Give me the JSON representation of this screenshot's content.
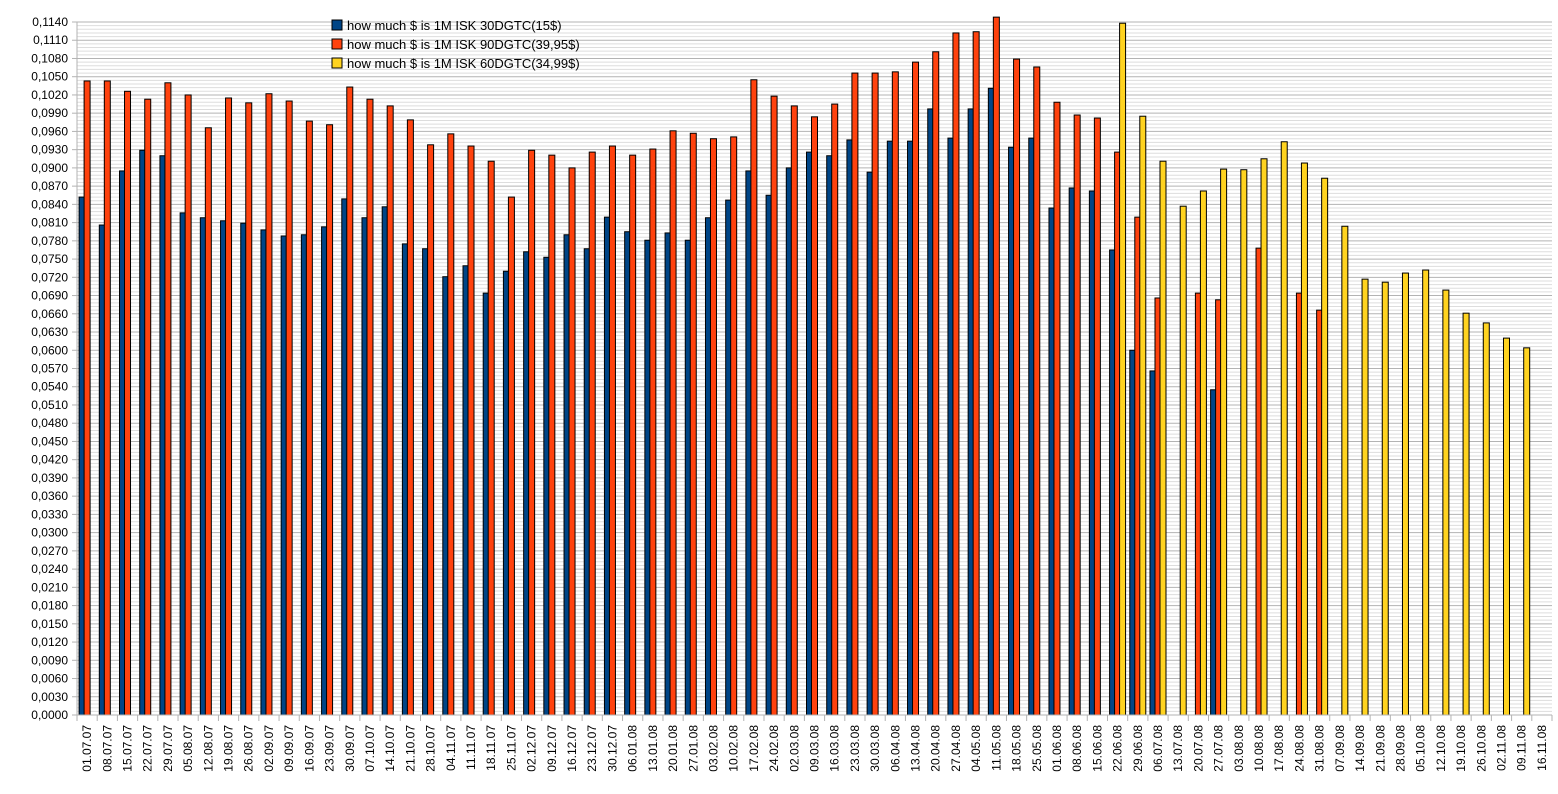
{
  "chart_data": {
    "type": "bar",
    "title": "",
    "xlabel": "",
    "ylabel": "",
    "ylim": [
      0,
      0.114
    ],
    "y_major_step": 0.003,
    "y_minor_step": 0.0006,
    "y_tick_decimals": 4,
    "decimal_separator": ",",
    "grid": true,
    "legend_position": "top-left-inside",
    "categories": [
      "01.07.07",
      "08.07.07",
      "15.07.07",
      "22.07.07",
      "29.07.07",
      "05.08.07",
      "12.08.07",
      "19.08.07",
      "26.08.07",
      "02.09.07",
      "09.09.07",
      "16.09.07",
      "23.09.07",
      "30.09.07",
      "07.10.07",
      "14.10.07",
      "21.10.07",
      "28.10.07",
      "04.11.07",
      "11.11.07",
      "18.11.07",
      "25.11.07",
      "02.12.07",
      "09.12.07",
      "16.12.07",
      "23.12.07",
      "30.12.07",
      "06.01.08",
      "13.01.08",
      "20.01.08",
      "27.01.08",
      "03.02.08",
      "10.02.08",
      "17.02.08",
      "24.02.08",
      "02.03.08",
      "09.03.08",
      "16.03.08",
      "23.03.08",
      "30.03.08",
      "06.04.08",
      "13.04.08",
      "20.04.08",
      "27.04.08",
      "04.05.08",
      "11.05.08",
      "18.05.08",
      "25.05.08",
      "01.06.08",
      "08.06.08",
      "15.06.08",
      "22.06.08",
      "29.06.08",
      "06.07.08",
      "13.07.08",
      "20.07.08",
      "27.07.08",
      "03.08.08",
      "10.08.08",
      "17.08.08",
      "24.08.08",
      "31.08.08",
      "07.09.08",
      "14.09.08",
      "21.09.08",
      "28.09.08",
      "05.10.08",
      "12.10.08",
      "19.10.08",
      "26.10.08",
      "02.11.08",
      "09.11.08",
      "16.11.08"
    ],
    "series": [
      {
        "name": "how much $ is 1M ISK 30DGTC(15$)",
        "color": "#004586",
        "values": [
          0.0852,
          0.0806,
          0.0895,
          0.0929,
          0.092,
          0.0826,
          0.0818,
          0.0813,
          0.0809,
          0.0798,
          0.0788,
          0.079,
          0.0803,
          0.0849,
          0.0818,
          0.0836,
          0.0775,
          0.0767,
          0.0721,
          0.0739,
          0.0694,
          0.073,
          0.0762,
          0.0753,
          0.079,
          0.0767,
          0.0819,
          0.0795,
          0.0781,
          0.0793,
          0.0781,
          0.0818,
          0.0847,
          0.0895,
          0.0855,
          0.09,
          0.0926,
          0.092,
          0.0946,
          0.0893,
          0.0944,
          0.0944,
          0.0997,
          0.0949,
          0.0997,
          0.1031,
          0.0934,
          0.0949,
          0.0834,
          0.0867,
          0.0862,
          0.0765,
          0.06,
          0.0566,
          null,
          null,
          0.0535,
          null,
          null,
          null,
          null,
          null,
          null,
          null,
          null,
          null,
          null,
          null,
          null,
          null,
          null,
          null,
          null
        ]
      },
      {
        "name": "how much $ is 1M ISK 90DGTC(39,95$)",
        "color": "#ff420e",
        "values": [
          0.1043,
          0.1043,
          0.1026,
          0.1013,
          0.104,
          0.102,
          0.0966,
          0.1015,
          0.1007,
          0.1022,
          0.101,
          0.0977,
          0.0971,
          0.1033,
          0.1013,
          0.1002,
          0.0979,
          0.0938,
          0.0956,
          0.0936,
          0.0911,
          0.0852,
          0.0929,
          0.0921,
          0.09,
          0.0926,
          0.0936,
          0.0921,
          0.0931,
          0.0961,
          0.0957,
          0.0948,
          0.0951,
          0.1045,
          0.1018,
          0.1002,
          0.0984,
          0.1005,
          0.1056,
          0.1056,
          0.1058,
          0.1074,
          0.1091,
          0.1122,
          0.1124,
          0.1148,
          0.1079,
          0.1066,
          0.1008,
          0.0987,
          0.0982,
          0.0926,
          0.0819,
          0.0686,
          null,
          0.0694,
          0.0683,
          null,
          0.0768,
          null,
          0.0694,
          0.0666,
          null,
          null,
          null,
          null,
          null,
          null,
          null,
          null,
          null,
          null,
          null
        ]
      },
      {
        "name": "how much $ is 1M ISK 60DGTC(34,99$)",
        "color": "#ffd320",
        "values": [
          null,
          null,
          null,
          null,
          null,
          null,
          null,
          null,
          null,
          null,
          null,
          null,
          null,
          null,
          null,
          null,
          null,
          null,
          null,
          null,
          null,
          null,
          null,
          null,
          null,
          null,
          null,
          null,
          null,
          null,
          null,
          null,
          null,
          null,
          null,
          null,
          null,
          null,
          null,
          null,
          null,
          null,
          null,
          null,
          null,
          null,
          null,
          null,
          null,
          null,
          null,
          0.1138,
          0.0985,
          0.0911,
          0.0837,
          0.0862,
          0.0898,
          0.0897,
          0.0915,
          0.0943,
          0.0908,
          0.0883,
          0.0804,
          0.0717,
          0.0712,
          0.0727,
          0.0732,
          0.0699,
          0.0661,
          0.0645,
          0.062,
          0.0604,
          null
        ]
      }
    ]
  }
}
